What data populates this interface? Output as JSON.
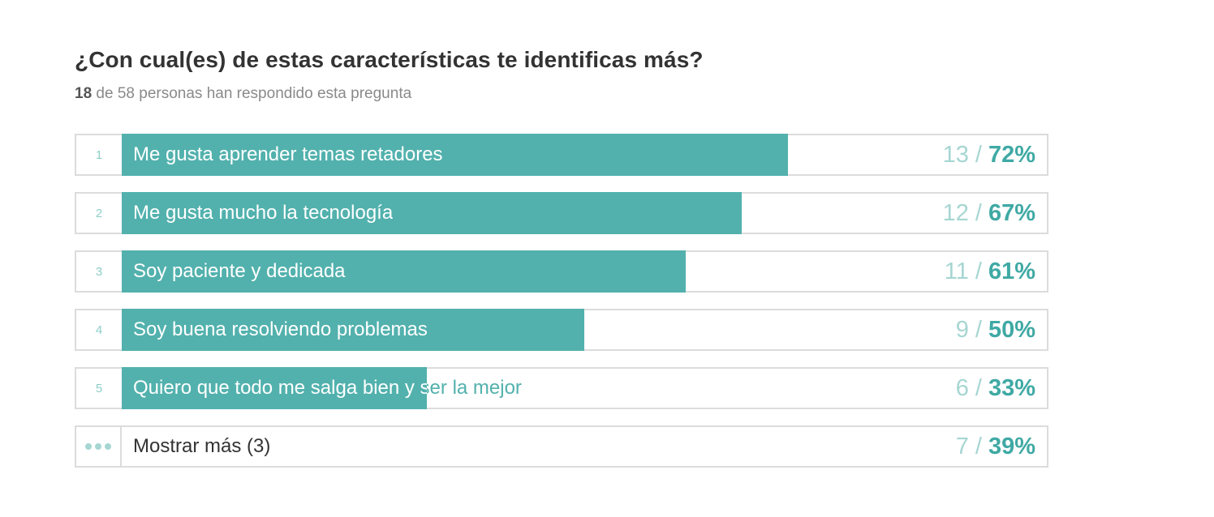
{
  "question": {
    "title": "¿Con cual(es) de estas características te identificas más?",
    "respondents": "18",
    "respondents_text": "de 58 personas han respondido esta pregunta"
  },
  "colors": {
    "bar": "#52b1ad",
    "accent": "#3fa9a4",
    "muted": "#a6d6d2"
  },
  "answers": [
    {
      "rank": "1",
      "label": "Me gusta aprender temas retadores",
      "count": "13",
      "percent": "72%",
      "fraction": 0.72
    },
    {
      "rank": "2",
      "label": "Me gusta mucho la tecnología",
      "count": "12",
      "percent": "67%",
      "fraction": 0.67
    },
    {
      "rank": "3",
      "label": "Soy paciente y dedicada",
      "count": "11",
      "percent": "61%",
      "fraction": 0.61
    },
    {
      "rank": "4",
      "label": "Soy buena resolviendo problemas",
      "count": "9",
      "percent": "50%",
      "fraction": 0.5
    },
    {
      "rank": "5",
      "label": "Quiero que todo me salga bien y ser la mejor",
      "count": "6",
      "percent": "33%",
      "fraction": 0.33
    }
  ],
  "show_more": {
    "icon": "more-dots-icon",
    "label": "Mostrar más (3)",
    "count": "7",
    "percent": "39%"
  }
}
